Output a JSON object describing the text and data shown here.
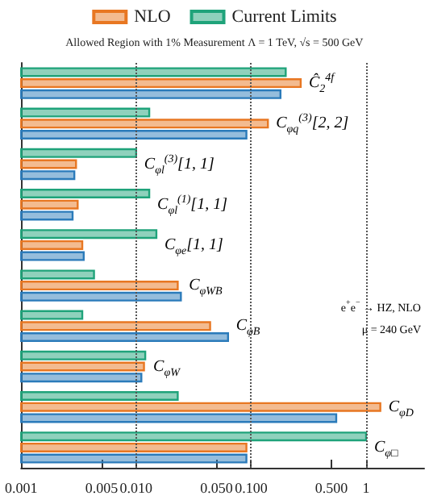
{
  "chart_data": {
    "type": "bar",
    "orientation": "horizontal",
    "log": "x",
    "subtitle": "Allowed Region with 1% Measurement Λ = 1 TeV, √s = 500 GeV",
    "categories": [
      "Ĉ$_{2}$$^{4f}$",
      "C$_{φq}$$^{(3)}$[2, 2]",
      "C$_{φl}$$^{(3)}$[1, 1]",
      "C$_{φl}$$^{(1)}$[1, 1]",
      "C$_{φe}$[1, 1]",
      "C$_{φWB}$",
      "C$_{φB}$",
      "C$_{φW}$",
      "C$_{φD}$",
      "C$_{φ□}$"
    ],
    "series": [
      {
        "name": "Current Limits",
        "color": "#1fa37a",
        "values": [
          0.2,
          0.013,
          0.01,
          0.013,
          0.015,
          0.0043,
          0.0034,
          0.012,
          0.023,
          1.0
        ]
      },
      {
        "name": "NLO",
        "color": "#e87722",
        "values": [
          0.27,
          0.14,
          0.003,
          0.0031,
          0.0034,
          0.023,
          0.044,
          0.0117,
          1.33,
          0.091
        ]
      },
      {
        "color": "#2b7bba",
        "values": [
          0.18,
          0.091,
          0.0029,
          0.0028,
          0.0035,
          0.0245,
          0.063,
          0.0111,
          0.55,
          0.091
        ]
      }
    ],
    "xlim": [
      0.001,
      3.2
    ],
    "xticks": [
      {
        "value": 0.001,
        "label": "0.001"
      },
      {
        "value": 0.005,
        "label": "0.005"
      },
      {
        "value": 0.01,
        "label": "0.010"
      },
      {
        "value": 0.05,
        "label": "0.050"
      },
      {
        "value": 0.1,
        "label": "0.100"
      },
      {
        "value": 0.5,
        "label": "0.500"
      },
      1
    ],
    "ref_lines": [
      {
        "axis": "x",
        "value": 0.01,
        "color": "#555555",
        "line_style": "dotted"
      },
      {
        "axis": "x",
        "value": 0.1,
        "color": "#555555",
        "line_style": "dotted"
      },
      {
        "axis": "x",
        "value": 1,
        "color": "#555555",
        "line_style": "dotted"
      }
    ],
    "annotations": [
      "e$^{+}$e$^{−}$ → HZ, NLO",
      "μ = 240 GeV"
    ],
    "legend": "top",
    "grid": false
  }
}
